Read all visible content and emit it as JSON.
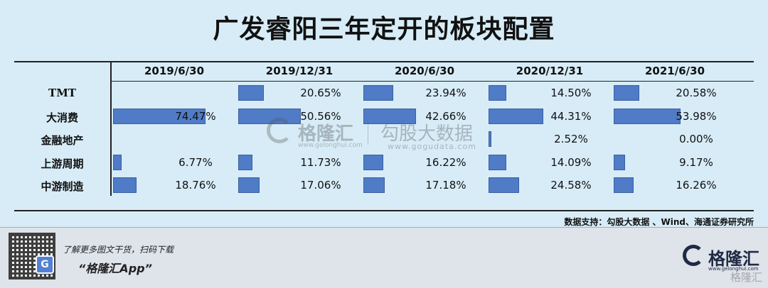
{
  "title": "广发睿阳三年定开的板块配置",
  "chart_data": {
    "type": "table",
    "categories": [
      "2019/6/30",
      "2019/12/31",
      "2020/6/30",
      "2020/12/31",
      "2021/6/30"
    ],
    "series": [
      {
        "name": "TMT",
        "values": [
          null,
          20.65,
          23.94,
          14.5,
          20.58
        ],
        "labels": [
          "",
          "20.65%",
          "23.94%",
          "14.50%",
          "20.58%"
        ]
      },
      {
        "name": "大消费",
        "values": [
          74.47,
          50.56,
          42.66,
          44.31,
          53.98
        ],
        "labels": [
          "74.47%",
          "50.56%",
          "42.66%",
          "44.31%",
          "53.98%"
        ]
      },
      {
        "name": "金融地产",
        "values": [
          null,
          null,
          null,
          2.52,
          0.0
        ],
        "labels": [
          "",
          "",
          "",
          "2.52%",
          "0.00%"
        ]
      },
      {
        "name": "上游周期",
        "values": [
          6.77,
          11.73,
          16.22,
          14.09,
          9.17
        ],
        "labels": [
          "6.77%",
          "11.73%",
          "16.22%",
          "14.09%",
          "9.17%"
        ]
      },
      {
        "name": "中游制造",
        "values": [
          18.76,
          17.06,
          17.18,
          24.58,
          16.26
        ],
        "labels": [
          "18.76%",
          "17.06%",
          "17.18%",
          "24.58%",
          "16.26%"
        ]
      }
    ],
    "bar_max": 100,
    "bar_color": "#4472c4"
  },
  "watermark": {
    "brand": "格隆汇",
    "brand_url": "www.gelonghui.com",
    "brand2": "勾股大数据",
    "brand2_url": "www.gogudata.com"
  },
  "source": "数据支持：勾股大数据 、Wind、海通证券研究所",
  "footer": {
    "promo_line1": "了解更多图文干货，扫码下载",
    "promo_line2": "“格隆汇App”",
    "qr_letter": "G",
    "logo_name": "格隆汇",
    "logo_sub": "www.gelonghui.com",
    "corner_watermark": "格隆汇"
  }
}
